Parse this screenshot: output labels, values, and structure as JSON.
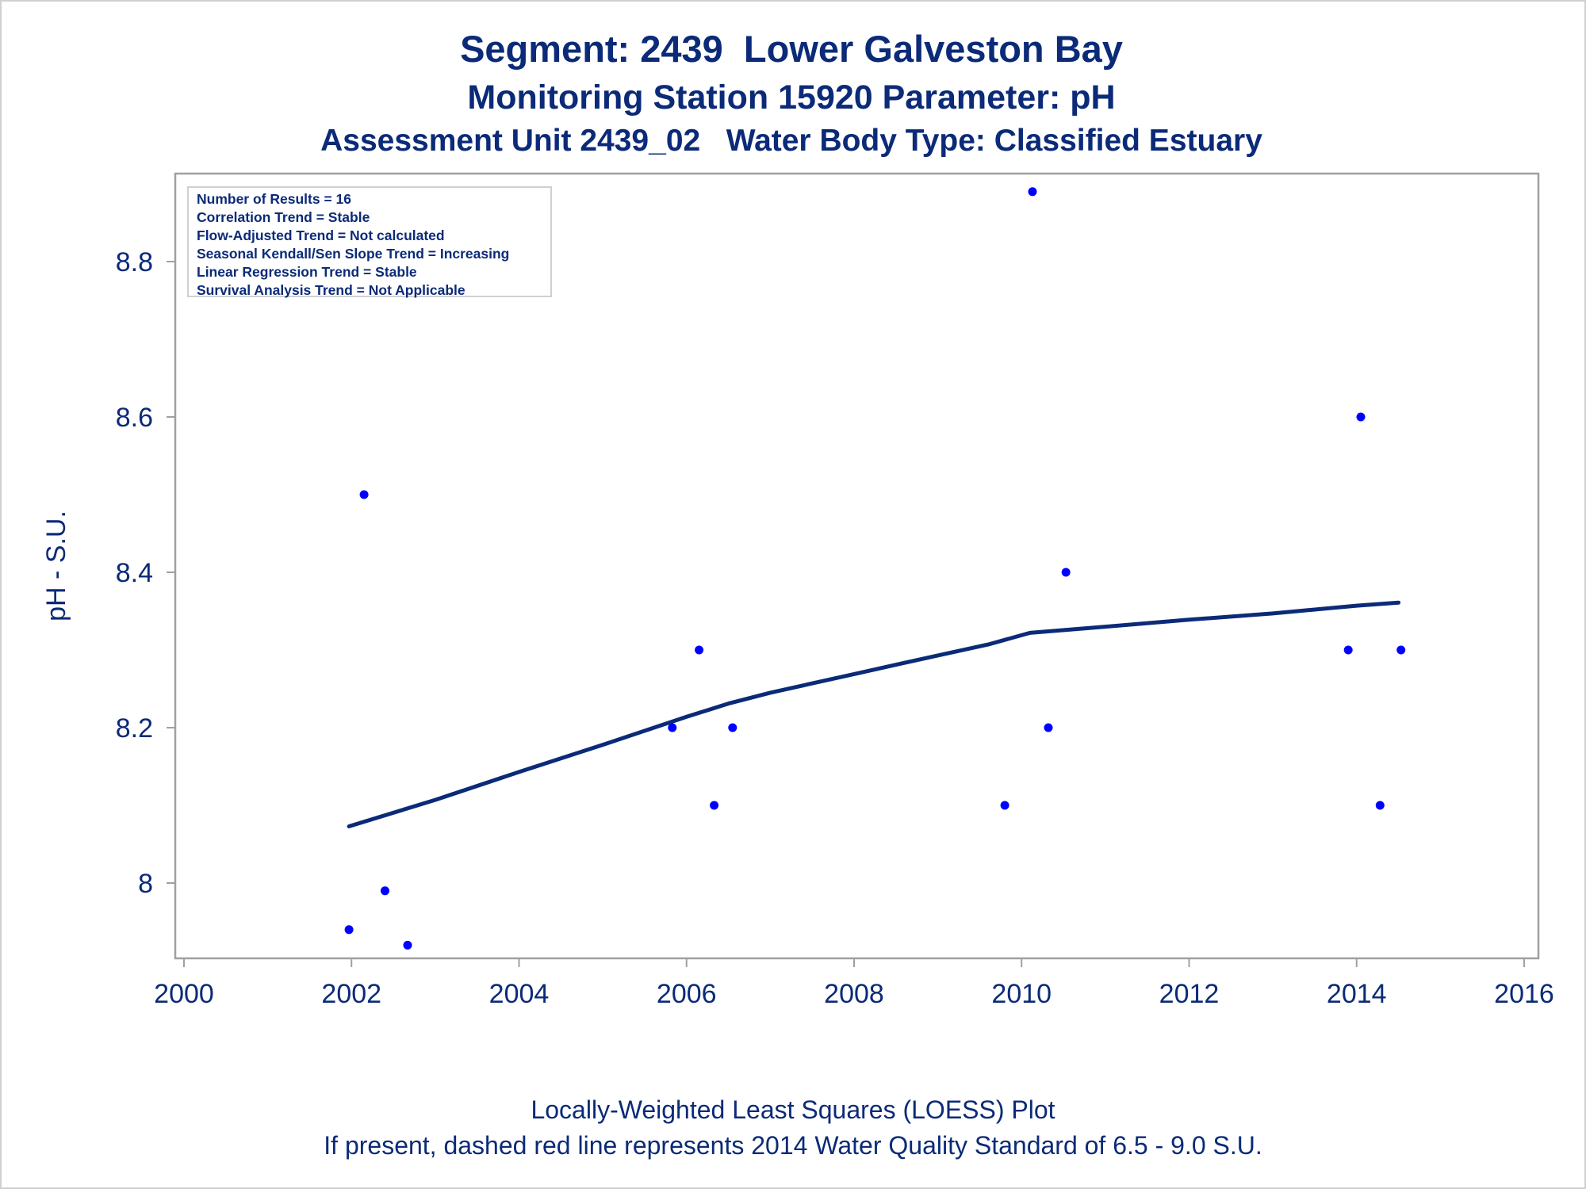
{
  "titles": {
    "line1": "Segment: 2439  Lower Galveston Bay",
    "line2": "Monitoring Station 15920 Parameter: pH",
    "line3": "Assessment Unit 2439_02   Water Body Type: Classified Estuary"
  },
  "footnotes": {
    "line1": "Locally-Weighted Least Squares (LOESS) Plot",
    "line2": "If present, dashed red line represents 2014 Water Quality Standard of 6.5 - 9.0 S.U."
  },
  "stats": [
    "Number of Results = 16",
    "Correlation Trend = Stable",
    "Flow-Adjusted Trend = Not calculated",
    "Seasonal Kendall/Sen Slope Trend = Increasing",
    "Linear Regression Trend = Stable",
    "Survival Analysis Trend = Not Applicable"
  ],
  "colors": {
    "text": "#0b2a78",
    "points": "#0000ff",
    "loess_line": "#0b2a78",
    "frame": "#a0a0a0"
  },
  "chart_data": {
    "type": "scatter",
    "xlabel": "",
    "ylabel": "pH - S.U.",
    "xlim": [
      2000,
      2016
    ],
    "ylim": [
      7.91,
      8.91
    ],
    "x_ticks": [
      2000,
      2002,
      2004,
      2006,
      2008,
      2010,
      2012,
      2014,
      2016
    ],
    "y_ticks": [
      8,
      8.2,
      8.4,
      8.6,
      8.8
    ],
    "y_tick_labels": [
      "8",
      "8.2",
      "8.4",
      "8.6",
      "8.8"
    ],
    "grid": false,
    "series": [
      {
        "type": "scatter",
        "points": [
          [
            2001.97,
            7.94
          ],
          [
            2002.15,
            8.5
          ],
          [
            2002.4,
            7.99
          ],
          [
            2002.67,
            7.92
          ],
          [
            2005.83,
            8.2
          ],
          [
            2006.15,
            8.3
          ],
          [
            2006.33,
            8.1
          ],
          [
            2006.55,
            8.2
          ],
          [
            2009.8,
            8.1
          ],
          [
            2010.13,
            8.89
          ],
          [
            2010.32,
            8.2
          ],
          [
            2010.53,
            8.4
          ],
          [
            2013.9,
            8.3
          ],
          [
            2014.05,
            8.6
          ],
          [
            2014.28,
            8.1
          ],
          [
            2014.53,
            8.3
          ]
        ]
      },
      {
        "type": "line",
        "points": [
          [
            2001.97,
            8.073
          ],
          [
            2003.0,
            8.107
          ],
          [
            2004.0,
            8.143
          ],
          [
            2005.0,
            8.178
          ],
          [
            2006.0,
            8.214
          ],
          [
            2006.5,
            8.231
          ],
          [
            2007.0,
            8.245
          ],
          [
            2008.0,
            8.269
          ],
          [
            2009.0,
            8.293
          ],
          [
            2009.6,
            8.307
          ],
          [
            2010.1,
            8.322
          ],
          [
            2011.0,
            8.33
          ],
          [
            2012.0,
            8.339
          ],
          [
            2013.0,
            8.347
          ],
          [
            2014.0,
            8.357
          ],
          [
            2014.5,
            8.361
          ]
        ]
      }
    ]
  }
}
